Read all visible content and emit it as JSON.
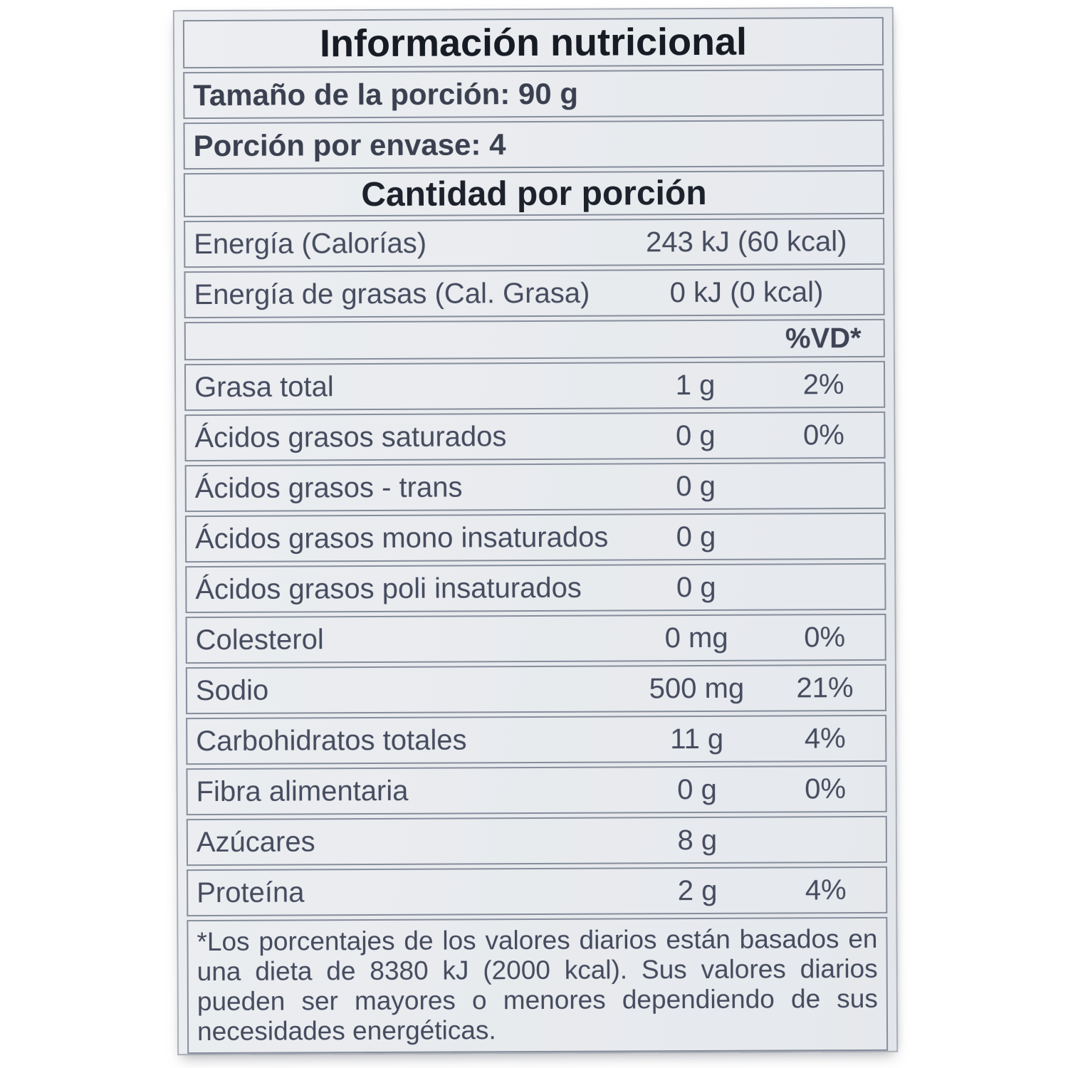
{
  "label": {
    "title": "Información nutricional",
    "serving_rows": [
      "Tamaño de la porción: 90 g",
      "Porción por envase: 4"
    ],
    "section_title": "Cantidad por porción",
    "energy_rows": [
      {
        "name": "Energía (Calorías)",
        "value": "243 kJ (60 kcal)"
      },
      {
        "name": "Energía de grasas (Cal. Grasa)",
        "value": "0 kJ (0 kcal)"
      }
    ],
    "dv_header": "%VD*",
    "nutrients": [
      {
        "name": "Grasa total",
        "amount": "1 g",
        "dv": "2%"
      },
      {
        "name": "Ácidos grasos saturados",
        "amount": "0 g",
        "dv": "0%"
      },
      {
        "name": "Ácidos grasos - trans",
        "amount": "0 g",
        "dv": ""
      },
      {
        "name": "Ácidos grasos mono insaturados",
        "amount": "0 g",
        "dv": ""
      },
      {
        "name": "Ácidos grasos poli insaturados",
        "amount": "0 g",
        "dv": ""
      },
      {
        "name": "Colesterol",
        "amount": "0 mg",
        "dv": "0%"
      },
      {
        "name": "Sodio",
        "amount": "500 mg",
        "dv": "21%"
      },
      {
        "name": "Carbohidratos totales",
        "amount": "11 g",
        "dv": "4%"
      },
      {
        "name": "Fibra alimentaria",
        "amount": "0 g",
        "dv": "0%"
      },
      {
        "name": "Azúcares",
        "amount": "8 g",
        "dv": ""
      },
      {
        "name": "Proteína",
        "amount": "2 g",
        "dv": "4%"
      }
    ],
    "footnote": "*Los porcentajes de los valores diarios están basados en una dieta de 8380 kJ (2000 kcal). Sus valores diarios pueden ser mayores o menores dependiendo de sus necesidades energéticas.",
    "colors": {
      "paper": "#e8eaee",
      "text": "#464c5f",
      "heading_text": "#171b24",
      "rule": "#868d9b"
    }
  }
}
